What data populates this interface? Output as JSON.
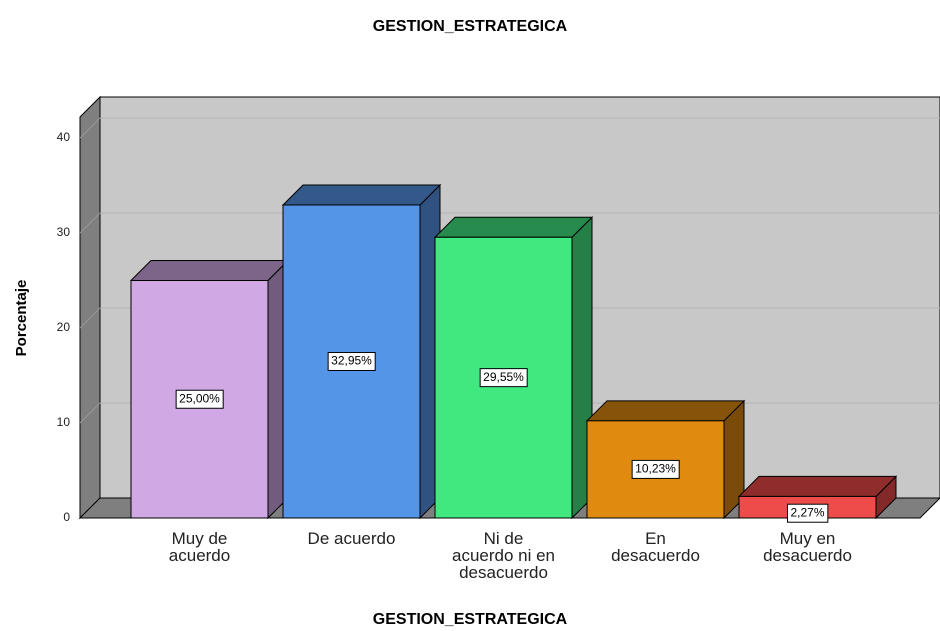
{
  "chart_data": {
    "type": "bar3d",
    "title": "GESTION_ESTRATEGICA",
    "x_label": "GESTION_ESTRATEGICA",
    "y_label": "Porcentaje",
    "categories": [
      "Muy de\nacuerdo",
      "De acuerdo",
      "Ni de\nacuerdo ni en\ndesacuerdo",
      "En\ndesacuerdo",
      "Muy en\ndesacuerdo"
    ],
    "values": [
      25.0,
      32.95,
      29.55,
      10.23,
      2.27
    ],
    "value_labels": [
      "25,00%",
      "32,95%",
      "29,55%",
      "10,23%",
      "2,27%"
    ],
    "colors": [
      "#cfa8e4",
      "#5595e8",
      "#41e880",
      "#e08b10",
      "#ee4b4b"
    ],
    "ylim": [
      0,
      40
    ],
    "yticks": [
      0,
      10,
      20,
      30,
      40
    ],
    "grid": true
  }
}
